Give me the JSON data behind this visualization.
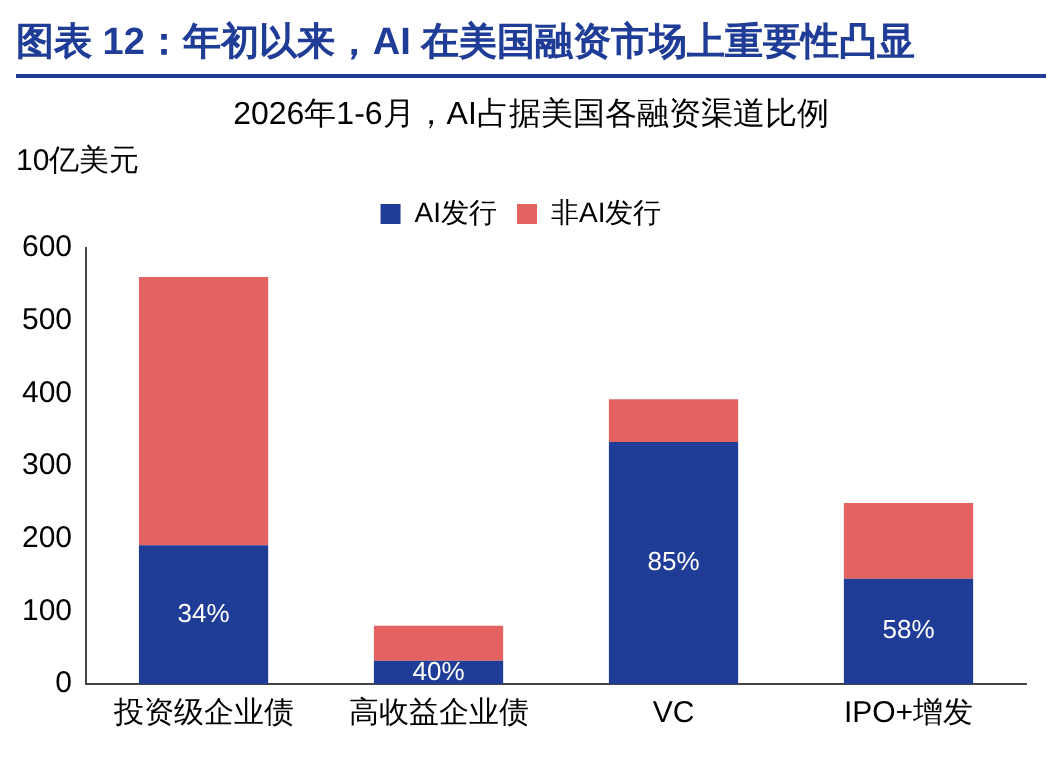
{
  "chart_data": {
    "type": "bar",
    "title": "图表 12：年初以来，AI 在美国融资市场上重要性凸显",
    "subtitle": "2026年1-6月，AI占据美国各融资渠道比例",
    "ylabel": "10亿美元",
    "categories": [
      "投资级企业债",
      "高收益企业债",
      "VC",
      "IPO+增发"
    ],
    "series": [
      {
        "name": "AI发行",
        "color": "#1f3c96",
        "values": [
          191,
          32,
          333,
          145
        ]
      },
      {
        "name": "非AI发行",
        "color": "#e46262",
        "values": [
          369,
          48,
          59,
          104
        ]
      }
    ],
    "annotations": [
      "34%",
      "40%",
      "85%",
      "58%"
    ],
    "stacked": true,
    "ylim": [
      0,
      600
    ],
    "yticks": [
      0,
      100,
      200,
      300,
      400,
      500,
      600
    ],
    "grid": false,
    "legend": "top"
  }
}
